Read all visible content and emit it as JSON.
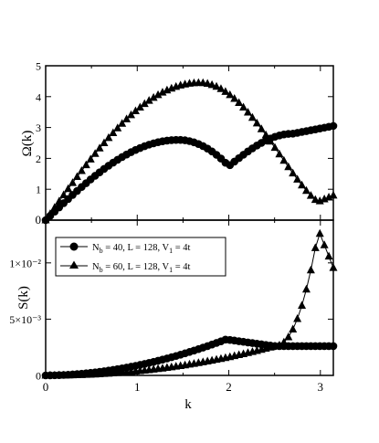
{
  "chart_data": [
    {
      "type": "line",
      "xlabel": "",
      "ylabel": "Ω(k)",
      "xlim": [
        0,
        3.14159
      ],
      "ylim": [
        0,
        5
      ],
      "x_ticks": [
        0,
        1,
        2,
        3
      ],
      "y_ticks": [
        0,
        1,
        2,
        3,
        4,
        5
      ],
      "y_tick_labels": [
        "0",
        "1",
        "2",
        "3",
        "4",
        "5"
      ],
      "grid": false,
      "series": [
        {
          "marker": "circle",
          "x": [],
          "values_fn": "omega_nb40",
          "points": 64
        },
        {
          "marker": "triangle",
          "x": [],
          "values_fn": "omega_nb60",
          "points": 64
        }
      ]
    },
    {
      "type": "line",
      "xlabel": "k",
      "ylabel": "S(k)",
      "xlim": [
        0,
        3.14159
      ],
      "ylim": [
        0,
        0.0138
      ],
      "x_ticks": [
        0,
        1,
        2,
        3
      ],
      "x_tick_labels": [
        "0",
        "1",
        "2",
        "3"
      ],
      "y_ticks": [
        0,
        0.005,
        0.01
      ],
      "y_tick_labels": [
        "0",
        "5×10⁻³",
        "1×10⁻²"
      ],
      "legend_position": "top-left",
      "grid": false,
      "series": [
        {
          "name": "N_b = 40, L = 128, V_1 = 4t",
          "marker": "circle",
          "values_fn": "s_nb40",
          "points": 64
        },
        {
          "name": "N_b = 60, L = 128, V_1 = 4t",
          "marker": "triangle",
          "values_fn": "s_nb60",
          "points": 64
        }
      ]
    }
  ],
  "legend": {
    "entry1": {
      "base": "N",
      "sub1": "b",
      "mid": " = 40, L = 128, V",
      "sub2": "1",
      "tail": " = 4t"
    },
    "entry2": {
      "base": "N",
      "sub1": "b",
      "mid": " = 60, L = 128, V",
      "sub2": "1",
      "tail": " = 4t"
    }
  },
  "labels": {
    "top_ylabel": "Ω(k)",
    "bottom_ylabel": "S(k)",
    "xlabel": "k"
  }
}
